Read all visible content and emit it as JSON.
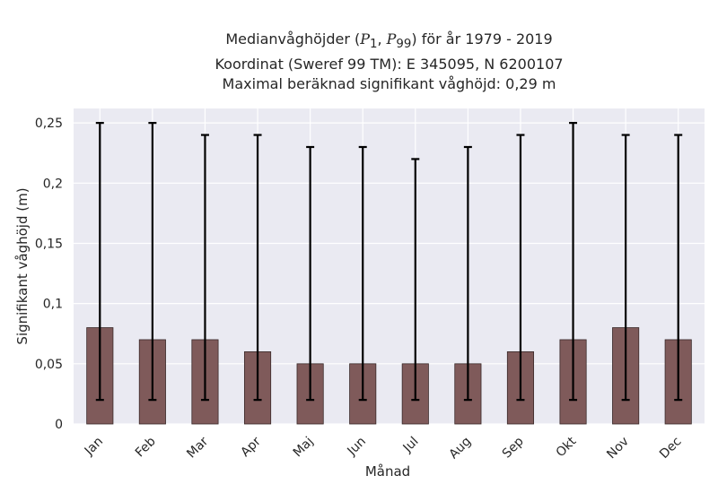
{
  "chart_data": {
    "type": "bar",
    "title": {
      "line1_prefix": "Medianvåghöjder (",
      "line1_p1": "P",
      "line1_p1_sub": "1",
      "line1_sep": ", ",
      "line1_p99": "P",
      "line1_p99_sub": "99",
      "line1_suffix": ") för år 1979 - 2019",
      "line2": "Koordinat (Sweref 99 TM): E 345095, N 6200107",
      "line3": "Maximal beräknad signifikant våghöjd: 0,29 m"
    },
    "xlabel": "Månad",
    "ylabel": "Signifikant våghöjd (m)",
    "ylim": [
      0,
      0.262
    ],
    "yticks": [
      0,
      0.05,
      0.1,
      0.15,
      0.2,
      0.25
    ],
    "ytick_labels": [
      "0",
      "0,05",
      "0,1",
      "0,15",
      "0,2",
      "0,25"
    ],
    "categories": [
      "Jan",
      "Feb",
      "Mar",
      "Apr",
      "Maj",
      "Jun",
      "Jul",
      "Aug",
      "Sep",
      "Okt",
      "Nov",
      "Dec"
    ],
    "values": [
      0.08,
      0.07,
      0.07,
      0.06,
      0.05,
      0.05,
      0.05,
      0.05,
      0.06,
      0.07,
      0.08,
      0.07
    ],
    "p1": [
      0.02,
      0.02,
      0.02,
      0.02,
      0.02,
      0.02,
      0.02,
      0.02,
      0.02,
      0.02,
      0.02,
      0.02
    ],
    "p99": [
      0.25,
      0.25,
      0.24,
      0.24,
      0.23,
      0.23,
      0.22,
      0.23,
      0.24,
      0.25,
      0.24,
      0.24
    ],
    "grid": true,
    "colors": {
      "bar": "#7f5a5a",
      "bar_edge": "#3a2a2a",
      "errorbar": "#000000",
      "background": "#eaeaf2",
      "grid": "#ffffff"
    }
  }
}
